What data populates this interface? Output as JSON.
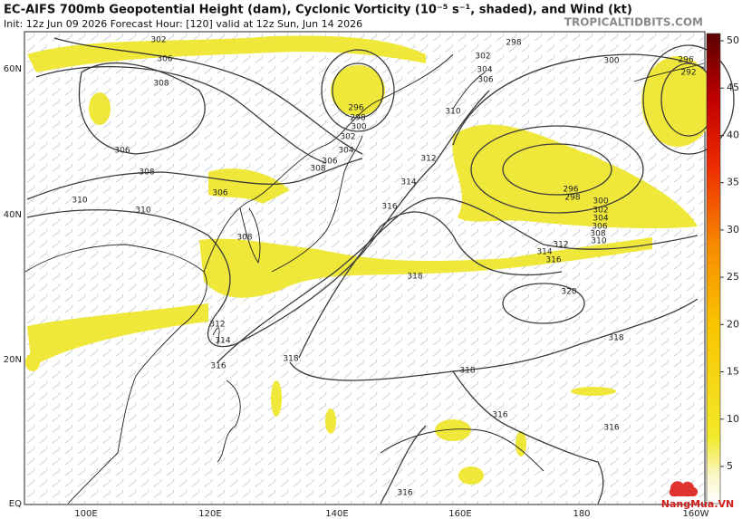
{
  "header": {
    "title": "EC-AIFS 700mb Geopotential Height (dam), Cyclonic Vorticity (10⁻⁵ s⁻¹, shaded), and Wind (kt)",
    "subtitle": "Init: 12z Jun 09 2026   Forecast Hour: [120]   valid at 12z Sun, Jun 14 2026",
    "brand": "TROPICALTIDBITS.COM"
  },
  "latitude_labels": [
    "60N",
    "40N",
    "20N",
    "EQ"
  ],
  "longitude_labels": [
    "100E",
    "120E",
    "140E",
    "160E",
    "180",
    "160W"
  ],
  "colorbar": {
    "ticks": [
      5,
      10,
      15,
      20,
      25,
      30,
      35,
      40,
      45,
      50
    ]
  },
  "contour_labels": [
    "302",
    "306",
    "308",
    "306",
    "308",
    "310",
    "310",
    "306",
    "308",
    "312",
    "314",
    "316",
    "318",
    "318",
    "316",
    "316",
    "316",
    "310",
    "312",
    "314",
    "316",
    "318",
    "320",
    "318",
    "296",
    "298",
    "300",
    "302",
    "304",
    "306",
    "308",
    "296",
    "298",
    "300",
    "302",
    "304",
    "306",
    "308",
    "310",
    "312",
    "314",
    "316",
    "298",
    "300",
    "302",
    "304",
    "306",
    "296",
    "292"
  ],
  "watermark": "NangMua.VN"
}
